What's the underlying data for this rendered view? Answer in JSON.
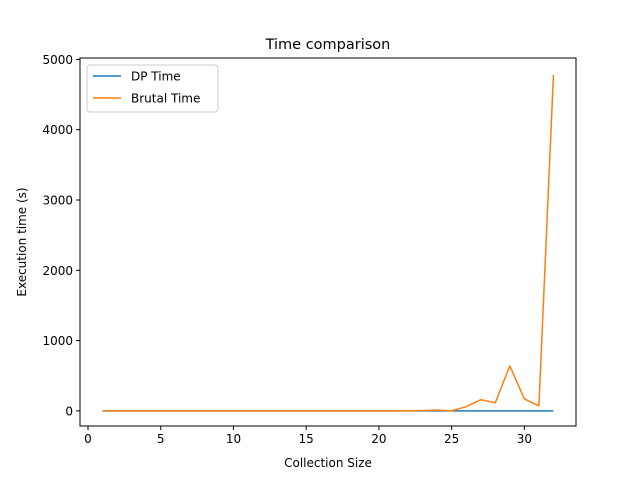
{
  "chart_data": {
    "type": "line",
    "title": "Time comparison",
    "xlabel": "Collection Size",
    "ylabel": "Execution time (s)",
    "xlim": [
      -0.55,
      33.55
    ],
    "ylim": [
      -215,
      5020
    ],
    "xticks": [
      0,
      5,
      10,
      15,
      20,
      25,
      30
    ],
    "yticks": [
      0,
      1000,
      2000,
      3000,
      4000,
      5000
    ],
    "grid": false,
    "legend_position": "top-left",
    "x": [
      1,
      2,
      3,
      4,
      5,
      6,
      7,
      8,
      9,
      10,
      11,
      12,
      13,
      14,
      15,
      16,
      17,
      18,
      19,
      20,
      21,
      22,
      23,
      24,
      25,
      26,
      27,
      28,
      29,
      30,
      31,
      32
    ],
    "series": [
      {
        "name": "DP Time",
        "color": "#1f77b4",
        "values": [
          0,
          0,
          0,
          0,
          0,
          0,
          0,
          0,
          0,
          0,
          0,
          0,
          0,
          0,
          0,
          0,
          0,
          0,
          0,
          0,
          0,
          0,
          0,
          0,
          0,
          0,
          0,
          0,
          0,
          0,
          0,
          0
        ]
      },
      {
        "name": "Brutal Time",
        "color": "#ff7f0e",
        "values": [
          0,
          0,
          0,
          0,
          0,
          0,
          0,
          0,
          0,
          0,
          0,
          0,
          0,
          0,
          0,
          0,
          0,
          0,
          0,
          1,
          1,
          2,
          4,
          10,
          1,
          60,
          160,
          115,
          640,
          170,
          70,
          4780
        ]
      }
    ]
  }
}
